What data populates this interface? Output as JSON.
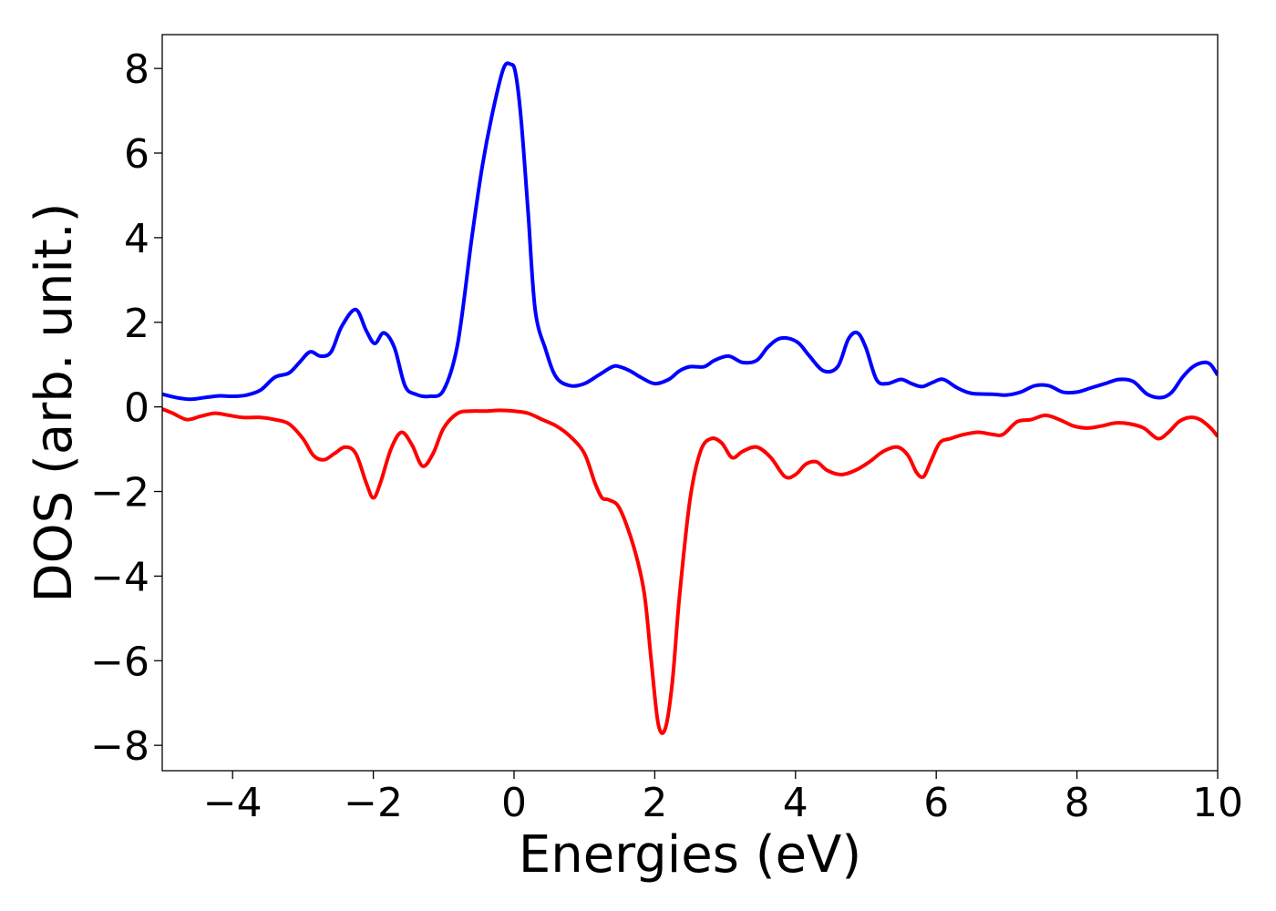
{
  "chart_data": {
    "type": "line",
    "xlabel": "Energies (eV)",
    "ylabel": "DOS (arb. unit.)",
    "xlim": [
      -5,
      10
    ],
    "ylim": [
      -8.6,
      8.8
    ],
    "xticks": [
      -4,
      -2,
      0,
      2,
      4,
      6,
      8,
      10
    ],
    "xtick_labels": [
      "−4",
      "−2",
      "0",
      "2",
      "4",
      "6",
      "8",
      "10"
    ],
    "yticks": [
      -8,
      -6,
      -4,
      -2,
      0,
      2,
      4,
      6,
      8
    ],
    "ytick_labels": [
      "−8",
      "−6",
      "−4",
      "−2",
      "0",
      "2",
      "4",
      "6",
      "8"
    ],
    "grid": false,
    "series": [
      {
        "color": "#0000ff",
        "x": [
          -5.0,
          -4.8,
          -4.6,
          -4.4,
          -4.2,
          -4.0,
          -3.8,
          -3.6,
          -3.4,
          -3.2,
          -3.05,
          -2.9,
          -2.75,
          -2.6,
          -2.45,
          -2.25,
          -2.1,
          -1.98,
          -1.85,
          -1.7,
          -1.55,
          -1.4,
          -1.2,
          -1.0,
          -0.8,
          -0.6,
          -0.45,
          -0.3,
          -0.15,
          -0.05,
          0.02,
          0.1,
          0.2,
          0.3,
          0.45,
          0.6,
          0.8,
          1.0,
          1.2,
          1.4,
          1.5,
          1.65,
          1.8,
          2.0,
          2.2,
          2.35,
          2.5,
          2.7,
          2.85,
          3.05,
          3.25,
          3.45,
          3.6,
          3.75,
          3.9,
          4.05,
          4.2,
          4.4,
          4.6,
          4.75,
          4.88,
          5.0,
          5.15,
          5.3,
          5.5,
          5.65,
          5.8,
          5.95,
          6.1,
          6.3,
          6.5,
          6.8,
          7.0,
          7.2,
          7.4,
          7.6,
          7.8,
          8.0,
          8.2,
          8.4,
          8.6,
          8.8,
          9.0,
          9.2,
          9.35,
          9.5,
          9.65,
          9.8,
          9.9,
          10.0
        ],
        "y": [
          0.3,
          0.22,
          0.18,
          0.22,
          0.26,
          0.25,
          0.28,
          0.4,
          0.7,
          0.8,
          1.05,
          1.3,
          1.2,
          1.3,
          1.9,
          2.3,
          1.8,
          1.5,
          1.75,
          1.4,
          0.5,
          0.3,
          0.25,
          0.4,
          1.5,
          4.0,
          5.7,
          7.0,
          8.0,
          8.1,
          7.9,
          6.8,
          4.6,
          2.3,
          1.35,
          0.7,
          0.5,
          0.55,
          0.75,
          0.95,
          0.95,
          0.85,
          0.7,
          0.55,
          0.65,
          0.85,
          0.95,
          0.95,
          1.1,
          1.2,
          1.05,
          1.1,
          1.4,
          1.6,
          1.62,
          1.5,
          1.2,
          0.85,
          0.95,
          1.6,
          1.75,
          1.4,
          0.65,
          0.55,
          0.65,
          0.55,
          0.48,
          0.58,
          0.65,
          0.45,
          0.32,
          0.3,
          0.28,
          0.35,
          0.5,
          0.5,
          0.35,
          0.35,
          0.45,
          0.55,
          0.65,
          0.6,
          0.3,
          0.22,
          0.35,
          0.7,
          0.95,
          1.05,
          1.0,
          0.75
        ]
      },
      {
        "color": "#ff0000",
        "x": [
          -5.0,
          -4.85,
          -4.65,
          -4.45,
          -4.25,
          -4.05,
          -3.85,
          -3.6,
          -3.4,
          -3.2,
          -3.0,
          -2.85,
          -2.7,
          -2.55,
          -2.4,
          -2.25,
          -2.1,
          -2.0,
          -1.9,
          -1.75,
          -1.6,
          -1.45,
          -1.3,
          -1.15,
          -1.0,
          -0.8,
          -0.6,
          -0.4,
          -0.2,
          0.0,
          0.2,
          0.4,
          0.6,
          0.8,
          1.0,
          1.15,
          1.25,
          1.35,
          1.5,
          1.7,
          1.85,
          1.95,
          2.05,
          2.15,
          2.25,
          2.35,
          2.5,
          2.65,
          2.8,
          2.95,
          3.1,
          3.25,
          3.45,
          3.65,
          3.85,
          4.0,
          4.15,
          4.3,
          4.45,
          4.65,
          4.85,
          5.05,
          5.25,
          5.45,
          5.6,
          5.72,
          5.82,
          5.92,
          6.05,
          6.2,
          6.4,
          6.6,
          6.8,
          6.95,
          7.15,
          7.35,
          7.55,
          7.75,
          7.95,
          8.15,
          8.35,
          8.55,
          8.75,
          8.95,
          9.15,
          9.3,
          9.45,
          9.6,
          9.75,
          9.9,
          10.0
        ],
        "y": [
          -0.05,
          -0.15,
          -0.3,
          -0.22,
          -0.15,
          -0.2,
          -0.25,
          -0.25,
          -0.3,
          -0.4,
          -0.75,
          -1.15,
          -1.25,
          -1.1,
          -0.95,
          -1.1,
          -1.8,
          -2.15,
          -1.8,
          -1.0,
          -0.6,
          -0.9,
          -1.4,
          -1.1,
          -0.5,
          -0.15,
          -0.1,
          -0.1,
          -0.08,
          -0.1,
          -0.15,
          -0.3,
          -0.45,
          -0.7,
          -1.1,
          -1.8,
          -2.15,
          -2.2,
          -2.4,
          -3.3,
          -4.4,
          -6.0,
          -7.5,
          -7.6,
          -6.5,
          -4.5,
          -2.2,
          -1.05,
          -0.75,
          -0.85,
          -1.2,
          -1.05,
          -0.95,
          -1.2,
          -1.65,
          -1.6,
          -1.35,
          -1.3,
          -1.5,
          -1.6,
          -1.5,
          -1.3,
          -1.05,
          -0.95,
          -1.15,
          -1.55,
          -1.65,
          -1.3,
          -0.85,
          -0.75,
          -0.65,
          -0.6,
          -0.65,
          -0.65,
          -0.35,
          -0.3,
          -0.2,
          -0.3,
          -0.45,
          -0.5,
          -0.45,
          -0.38,
          -0.4,
          -0.5,
          -0.75,
          -0.6,
          -0.35,
          -0.25,
          -0.3,
          -0.5,
          -0.7
        ]
      }
    ]
  }
}
